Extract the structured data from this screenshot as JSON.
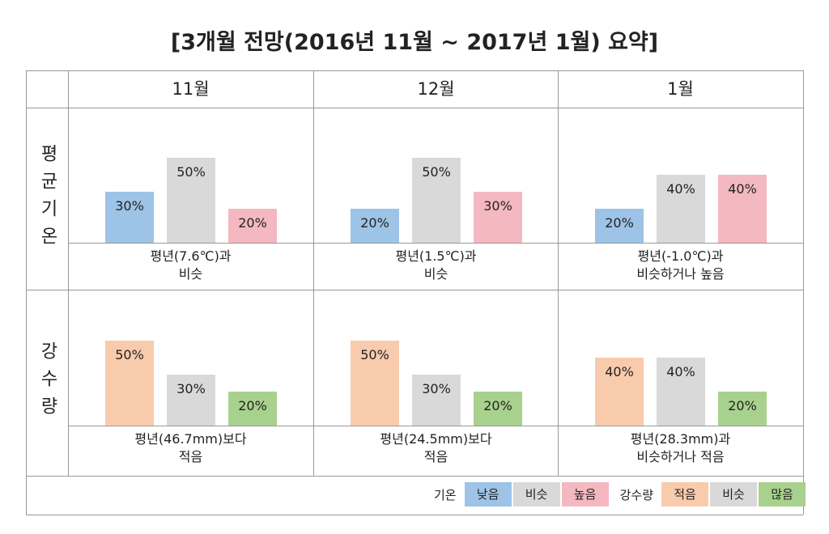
{
  "title": "[3개월 전망(2016년 11월 ~ 2017년 1월) 요약]",
  "columns": [
    "11월",
    "12월",
    "1월"
  ],
  "rows": [
    "평균기온",
    "강수량"
  ],
  "chart_data": [
    {
      "type": "bar",
      "values": [
        30,
        50,
        20
      ],
      "value_labels": [
        "30%",
        "50%",
        "20%"
      ],
      "colors": [
        "#9dc3e6",
        "#d9d9d9",
        "#f4b8c1"
      ],
      "description": [
        "평년(7.6℃)과",
        "비슷"
      ]
    },
    {
      "type": "bar",
      "values": [
        20,
        50,
        30
      ],
      "value_labels": [
        "20%",
        "50%",
        "30%"
      ],
      "colors": [
        "#9dc3e6",
        "#d9d9d9",
        "#f4b8c1"
      ],
      "description": [
        "평년(1.5℃)과",
        "비슷"
      ]
    },
    {
      "type": "bar",
      "values": [
        20,
        40,
        40
      ],
      "value_labels": [
        "20%",
        "40%",
        "40%"
      ],
      "colors": [
        "#9dc3e6",
        "#d9d9d9",
        "#f4b8c1"
      ],
      "description": [
        "평년(-1.0℃)과",
        "비슷하거나 높음"
      ]
    },
    {
      "type": "bar",
      "values": [
        50,
        30,
        20
      ],
      "value_labels": [
        "50%",
        "30%",
        "20%"
      ],
      "colors": [
        "#f8cbad",
        "#d9d9d9",
        "#a9d18e"
      ],
      "description": [
        "평년(46.7mm)보다",
        "적음"
      ]
    },
    {
      "type": "bar",
      "values": [
        50,
        30,
        20
      ],
      "value_labels": [
        "50%",
        "30%",
        "20%"
      ],
      "colors": [
        "#f8cbad",
        "#d9d9d9",
        "#a9d18e"
      ],
      "description": [
        "평년(24.5mm)보다",
        "적음"
      ]
    },
    {
      "type": "bar",
      "values": [
        40,
        40,
        20
      ],
      "value_labels": [
        "40%",
        "40%",
        "20%"
      ],
      "colors": [
        "#f8cbad",
        "#d9d9d9",
        "#a9d18e"
      ],
      "description": [
        "평년(28.3mm)과",
        "비슷하거나 적음"
      ]
    }
  ],
  "legend": [
    {
      "label": "기온",
      "items": [
        {
          "name": "낮음",
          "color": "#9dc3e6"
        },
        {
          "name": "비슷",
          "color": "#d9d9d9"
        },
        {
          "name": "높음",
          "color": "#f4b8c1"
        }
      ]
    },
    {
      "label": "강수량",
      "items": [
        {
          "name": "적음",
          "color": "#f8cbad"
        },
        {
          "name": "비슷",
          "color": "#d9d9d9"
        },
        {
          "name": "많음",
          "color": "#a9d18e"
        }
      ]
    }
  ]
}
